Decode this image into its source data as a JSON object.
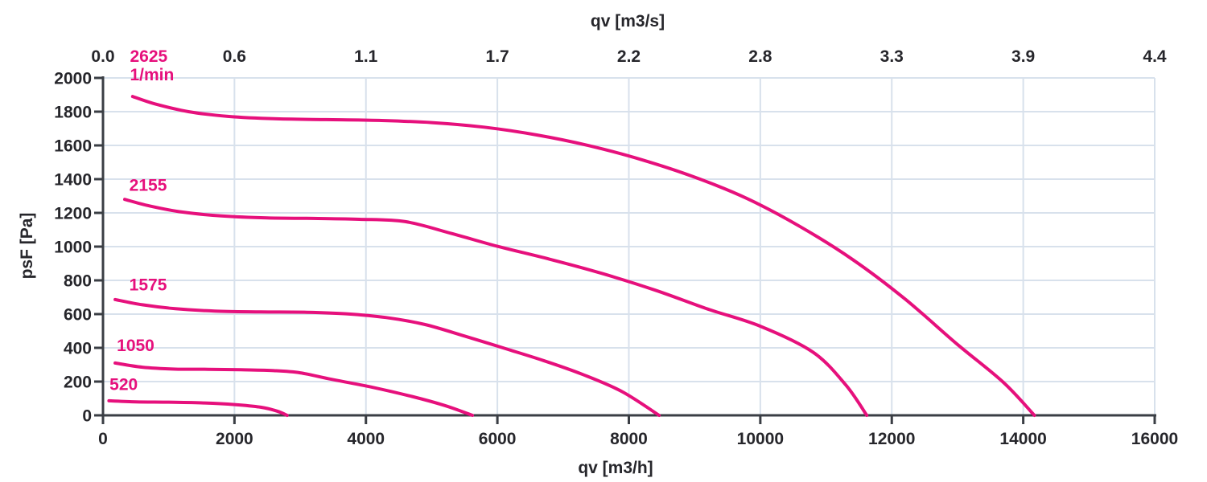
{
  "chart_data": {
    "type": "line",
    "title": "",
    "x_bottom": {
      "label": "qv [m3/h]",
      "range": [
        0,
        16000
      ],
      "ticks": [
        0,
        2000,
        4000,
        6000,
        8000,
        10000,
        12000,
        14000,
        16000
      ]
    },
    "x_top": {
      "label": "qv [m3/s]",
      "tick_labels": [
        "0.0",
        "0.6",
        "1.1",
        "1.7",
        "2.2",
        "2.8",
        "3.3",
        "3.9",
        "4.4"
      ]
    },
    "y": {
      "label": "psF [Pa]",
      "range": [
        0,
        2000
      ],
      "ticks": [
        0,
        200,
        400,
        600,
        800,
        1000,
        1200,
        1400,
        1600,
        1800,
        2000
      ]
    },
    "grid": true,
    "legend_position": "inline-curve-labels",
    "speed_unit_label": "1/min",
    "unit_label_pos": [
      410,
      1985
    ],
    "colors": {
      "curve": "#e6107c",
      "grid": "#d8e1ec",
      "axis": "#3a3e44",
      "text": "#26262b",
      "background": "#ffffff"
    },
    "series": [
      {
        "name": "2625",
        "unit": "1/min",
        "label_pos": [
          410,
          2095
        ],
        "points": [
          [
            450,
            1890
          ],
          [
            800,
            1845
          ],
          [
            1300,
            1800
          ],
          [
            1900,
            1772
          ],
          [
            2600,
            1758
          ],
          [
            3400,
            1753
          ],
          [
            4200,
            1748
          ],
          [
            5000,
            1735
          ],
          [
            5800,
            1708
          ],
          [
            6600,
            1662
          ],
          [
            7400,
            1598
          ],
          [
            8200,
            1515
          ],
          [
            9000,
            1412
          ],
          [
            9800,
            1285
          ],
          [
            10600,
            1120
          ],
          [
            11400,
            925
          ],
          [
            12200,
            690
          ],
          [
            13000,
            420
          ],
          [
            13700,
            195
          ],
          [
            14170,
            0
          ]
        ]
      },
      {
        "name": "2155",
        "unit": "1/min",
        "label_pos": [
          400,
          1330
        ],
        "points": [
          [
            330,
            1280
          ],
          [
            700,
            1242
          ],
          [
            1200,
            1205
          ],
          [
            1800,
            1182
          ],
          [
            2500,
            1170
          ],
          [
            3200,
            1167
          ],
          [
            3900,
            1162
          ],
          [
            4600,
            1148
          ],
          [
            5300,
            1078
          ],
          [
            6000,
            1002
          ],
          [
            6800,
            925
          ],
          [
            7600,
            840
          ],
          [
            8400,
            742
          ],
          [
            9200,
            630
          ],
          [
            10000,
            528
          ],
          [
            10800,
            375
          ],
          [
            11300,
            180
          ],
          [
            11620,
            0
          ]
        ]
      },
      {
        "name": "1575",
        "unit": "1/min",
        "label_pos": [
          400,
          740
        ],
        "points": [
          [
            185,
            686
          ],
          [
            600,
            655
          ],
          [
            1100,
            632
          ],
          [
            1700,
            618
          ],
          [
            2400,
            613
          ],
          [
            3100,
            611
          ],
          [
            3700,
            602
          ],
          [
            4300,
            580
          ],
          [
            4900,
            538
          ],
          [
            5500,
            470
          ],
          [
            6100,
            398
          ],
          [
            6700,
            325
          ],
          [
            7300,
            242
          ],
          [
            7900,
            140
          ],
          [
            8460,
            0
          ]
        ]
      },
      {
        "name": "1050",
        "unit": "1/min",
        "label_pos": [
          210,
          382
        ],
        "points": [
          [
            185,
            310
          ],
          [
            600,
            285
          ],
          [
            1100,
            274
          ],
          [
            1600,
            273
          ],
          [
            2100,
            270
          ],
          [
            2600,
            265
          ],
          [
            3000,
            252
          ],
          [
            3470,
            214
          ],
          [
            4090,
            167
          ],
          [
            4700,
            112
          ],
          [
            5200,
            58
          ],
          [
            5620,
            0
          ]
        ]
      },
      {
        "name": "520",
        "unit": "1/min",
        "label_pos": [
          100,
          150
        ],
        "points": [
          [
            90,
            86
          ],
          [
            500,
            80
          ],
          [
            1000,
            78
          ],
          [
            1500,
            74
          ],
          [
            2000,
            64
          ],
          [
            2400,
            48
          ],
          [
            2650,
            25
          ],
          [
            2800,
            0
          ]
        ]
      }
    ]
  }
}
